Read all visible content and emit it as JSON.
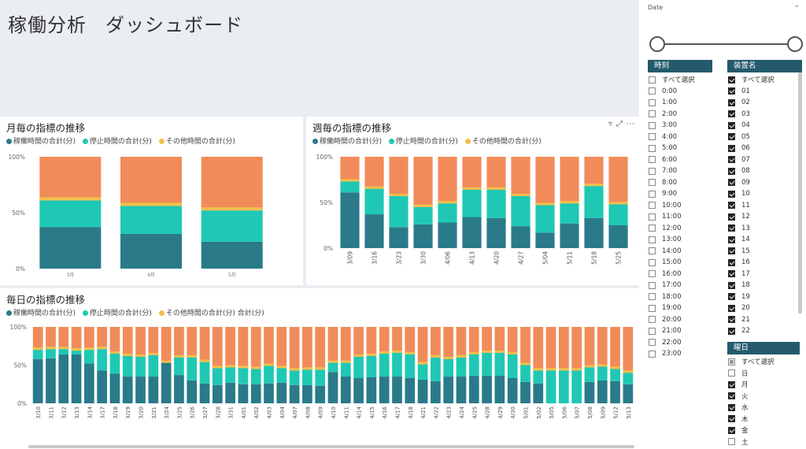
{
  "header": {
    "title_part1": "稼働分析",
    "title_part2": "ダッシュボード"
  },
  "colors": {
    "operating": "#2a7a8a",
    "stopped": "#1fc8b4",
    "other_small": "#f2c04b",
    "other": "#f28b5a"
  },
  "legend": {
    "operating": "稼働時間の合計(分)",
    "stopped": "停止時間の合計(分)",
    "other": "その他時間の合計(分)",
    "other_daily": "その他時間の合計(分) 合計(分)"
  },
  "monthly": {
    "title": "月毎の指標の推移"
  },
  "weekly": {
    "title": "週毎の指標の推移",
    "icons": [
      "filter-icon",
      "focus-mode-icon",
      "more-options-icon"
    ]
  },
  "daily": {
    "title": "毎日の指標の推移"
  },
  "chart_data": [
    {
      "type": "bar",
      "title": "月毎の指標の推移",
      "stacked": "100%",
      "categories": [
        "3月",
        "4月",
        "5月"
      ],
      "yticks": [
        "0%",
        "50%",
        "100%"
      ],
      "series": [
        {
          "name": "稼働時間の合計(分)",
          "values": [
            37,
            31,
            24
          ]
        },
        {
          "name": "停止時間の合計(分)",
          "values": [
            24,
            25,
            28
          ]
        },
        {
          "name": "その他時間の合計(分)",
          "values": [
            39,
            44,
            48
          ]
        }
      ]
    },
    {
      "type": "bar",
      "title": "週毎の指標の推移",
      "stacked": "100%",
      "categories": [
        "3/09",
        "3/16",
        "3/23",
        "3/30",
        "4/06",
        "4/13",
        "4/20",
        "4/27",
        "5/04",
        "5/11",
        "5/18",
        "5/25"
      ],
      "yticks": [
        "0%",
        "50%",
        "100%"
      ],
      "series": [
        {
          "name": "稼働時間の合計(分)",
          "values": [
            61,
            37,
            23,
            26,
            28,
            34,
            33,
            24,
            17,
            27,
            33,
            25
          ]
        },
        {
          "name": "停止時間の合計(分)",
          "values": [
            12,
            28,
            34,
            19,
            21,
            30,
            31,
            33,
            30,
            22,
            35,
            23
          ]
        },
        {
          "name": "その他時間の合計(分)",
          "values": [
            27,
            35,
            43,
            55,
            51,
            36,
            36,
            43,
            53,
            51,
            32,
            52
          ]
        }
      ]
    },
    {
      "type": "bar",
      "title": "毎日の指標の推移",
      "stacked": "100%",
      "categories": [
        "3/10",
        "3/11",
        "3/12",
        "3/13",
        "3/14",
        "3/17",
        "3/18",
        "3/19",
        "3/20",
        "3/21",
        "3/24",
        "3/25",
        "3/26",
        "3/27",
        "3/28",
        "3/31",
        "4/01",
        "4/02",
        "4/03",
        "4/04",
        "4/07",
        "4/08",
        "4/09",
        "4/10",
        "4/11",
        "4/14",
        "4/15",
        "4/16",
        "4/17",
        "4/18",
        "4/21",
        "4/22",
        "4/23",
        "4/24",
        "4/25",
        "4/28",
        "4/29",
        "4/30",
        "5/01",
        "5/02",
        "5/05",
        "5/06",
        "5/07",
        "5/08",
        "5/09",
        "5/12",
        "5/13"
      ],
      "yticks": [
        "0%",
        "50%",
        "100%"
      ],
      "series": [
        {
          "name": "稼働時間の合計(分)",
          "values": [
            58,
            59,
            64,
            64,
            52,
            43,
            39,
            35,
            35,
            35,
            53,
            37,
            30,
            26,
            24,
            27,
            25,
            25,
            26,
            27,
            24,
            24,
            23,
            41,
            35,
            33,
            34,
            35,
            35,
            33,
            31,
            29,
            35,
            35,
            36,
            36,
            36,
            33,
            28,
            26,
            0,
            0,
            0,
            28,
            30,
            29,
            25
          ]
        },
        {
          "name": "停止時間の合計(分)",
          "values": [
            12,
            12,
            7,
            5,
            18,
            28,
            26,
            27,
            26,
            28,
            0,
            23,
            30,
            28,
            22,
            20,
            21,
            20,
            23,
            19,
            19,
            20,
            21,
            12,
            18,
            28,
            28,
            30,
            31,
            31,
            20,
            31,
            23,
            25,
            28,
            30,
            30,
            31,
            22,
            17,
            43,
            43,
            43,
            19,
            18,
            16,
            15
          ]
        },
        {
          "name": "その他時間の合計(分)",
          "values": [
            30,
            29,
            29,
            31,
            30,
            29,
            35,
            38,
            39,
            37,
            47,
            40,
            40,
            46,
            54,
            53,
            54,
            55,
            51,
            54,
            57,
            56,
            56,
            47,
            47,
            39,
            38,
            35,
            34,
            36,
            49,
            40,
            42,
            40,
            36,
            34,
            34,
            36,
            50,
            57,
            57,
            57,
            57,
            53,
            52,
            55,
            60
          ]
        }
      ]
    }
  ],
  "slicer": {
    "date_label": "Date",
    "time": {
      "header": "時刻",
      "items": [
        {
          "label": "すべて選択",
          "checked": "off"
        },
        {
          "label": "0:00",
          "checked": "off"
        },
        {
          "label": "1:00",
          "checked": "off"
        },
        {
          "label": "2:00",
          "checked": "off"
        },
        {
          "label": "3:00",
          "checked": "off"
        },
        {
          "label": "4:00",
          "checked": "off"
        },
        {
          "label": "5:00",
          "checked": "off"
        },
        {
          "label": "6:00",
          "checked": "off"
        },
        {
          "label": "7:00",
          "checked": "off"
        },
        {
          "label": "8:00",
          "checked": "off"
        },
        {
          "label": "9:00",
          "checked": "off"
        },
        {
          "label": "10:00",
          "checked": "off"
        },
        {
          "label": "11:00",
          "checked": "off"
        },
        {
          "label": "12:00",
          "checked": "off"
        },
        {
          "label": "13:00",
          "checked": "off"
        },
        {
          "label": "14:00",
          "checked": "off"
        },
        {
          "label": "15:00",
          "checked": "off"
        },
        {
          "label": "16:00",
          "checked": "off"
        },
        {
          "label": "17:00",
          "checked": "off"
        },
        {
          "label": "18:00",
          "checked": "off"
        },
        {
          "label": "19:00",
          "checked": "off"
        },
        {
          "label": "20:00",
          "checked": "off"
        },
        {
          "label": "21:00",
          "checked": "off"
        },
        {
          "label": "22:00",
          "checked": "off"
        },
        {
          "label": "23:00",
          "checked": "off"
        }
      ]
    },
    "device": {
      "header": "装置名",
      "items": [
        {
          "label": "すべて選択",
          "checked": "on"
        },
        {
          "label": "01",
          "checked": "on"
        },
        {
          "label": "02",
          "checked": "on"
        },
        {
          "label": "03",
          "checked": "on"
        },
        {
          "label": "04",
          "checked": "on"
        },
        {
          "label": "05",
          "checked": "on"
        },
        {
          "label": "06",
          "checked": "on"
        },
        {
          "label": "07",
          "checked": "on"
        },
        {
          "label": "08",
          "checked": "on"
        },
        {
          "label": "09",
          "checked": "on"
        },
        {
          "label": "10",
          "checked": "on"
        },
        {
          "label": "11",
          "checked": "on"
        },
        {
          "label": "12",
          "checked": "on"
        },
        {
          "label": "13",
          "checked": "on"
        },
        {
          "label": "14",
          "checked": "on"
        },
        {
          "label": "15",
          "checked": "on"
        },
        {
          "label": "16",
          "checked": "on"
        },
        {
          "label": "17",
          "checked": "on"
        },
        {
          "label": "18",
          "checked": "on"
        },
        {
          "label": "19",
          "checked": "on"
        },
        {
          "label": "20",
          "checked": "on"
        },
        {
          "label": "21",
          "checked": "on"
        },
        {
          "label": "22",
          "checked": "on"
        }
      ]
    },
    "weekday": {
      "header": "曜日",
      "items": [
        {
          "label": "すべて選択",
          "checked": "partial"
        },
        {
          "label": "日",
          "checked": "off"
        },
        {
          "label": "月",
          "checked": "on"
        },
        {
          "label": "火",
          "checked": "on"
        },
        {
          "label": "水",
          "checked": "on"
        },
        {
          "label": "木",
          "checked": "on"
        },
        {
          "label": "金",
          "checked": "on"
        },
        {
          "label": "土",
          "checked": "off"
        }
      ]
    }
  }
}
